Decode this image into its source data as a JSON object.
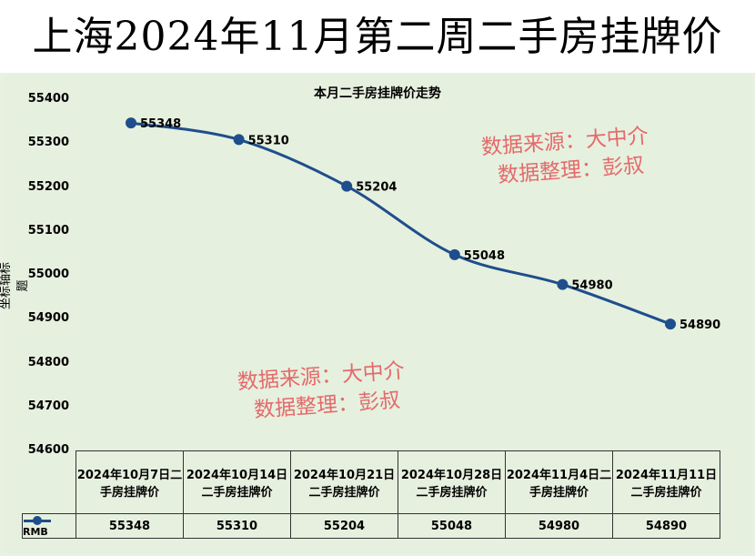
{
  "banner_title": "上海2024年11月第二周二手房挂牌价",
  "watermark": {
    "line1": "数据来源：大中介",
    "line2": "数据整理：彭叔"
  },
  "chart_data": {
    "type": "line",
    "title": "本月二手房挂牌价走势",
    "ylabel": "坐标轴标题",
    "xlabel": "",
    "ylim": [
      54600,
      55400
    ],
    "yticks": [
      55400,
      55300,
      55200,
      55100,
      55000,
      54900,
      54800,
      54700,
      54600
    ],
    "categories": [
      "2024年10月7日二手房挂牌价",
      "2024年10月14日二手房挂牌价",
      "2024年10月21日二手房挂牌价",
      "2024年10月28日二手房挂牌价",
      "2024年11月4日二手房挂牌价",
      "2024年11月11日二手房挂牌价"
    ],
    "series": [
      {
        "name": "RMB",
        "values": [
          55348,
          55310,
          55204,
          55048,
          54980,
          54890
        ],
        "color": "#1f4e8c"
      }
    ],
    "data_labels": true,
    "grid": false,
    "legend": "data-table"
  }
}
